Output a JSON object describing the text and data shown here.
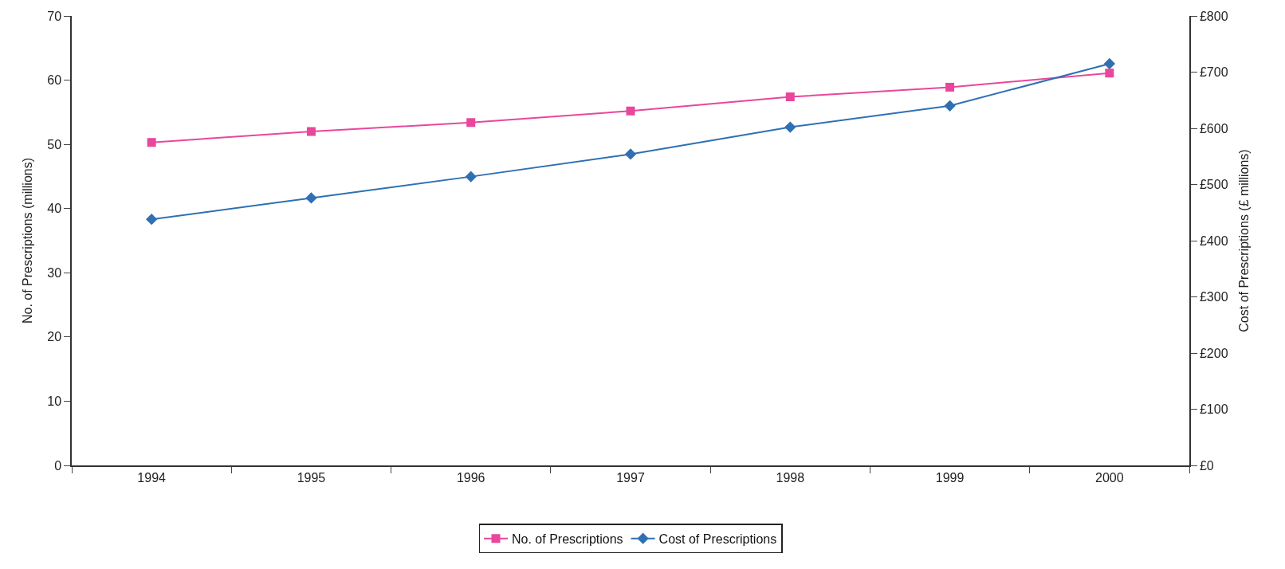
{
  "chart_data": {
    "type": "line",
    "categories": [
      "1994",
      "1995",
      "1996",
      "1997",
      "1998",
      "1999",
      "2000"
    ],
    "series": [
      {
        "name": "No. of Prescriptions",
        "color": "#e8479b",
        "marker": "square",
        "values": [
          50.3,
          52.0,
          53.4,
          55.2,
          57.4,
          58.9,
          61.1
        ]
      },
      {
        "name": "Cost of Prescriptions",
        "color": "#2f70b3",
        "marker": "diamond",
        "axis": "y2",
        "values": [
          438,
          476,
          514,
          554,
          602,
          640,
          715
        ]
      }
    ],
    "ylabel": "No. of Prescriptions (millions)",
    "y2label": "Cost of Prescriptions (£ millions)",
    "ylim": [
      0,
      70
    ],
    "yticks": [
      0,
      10,
      20,
      30,
      40,
      50,
      60,
      70
    ],
    "y2lim": [
      0,
      800
    ],
    "y2ticks": [
      {
        "value": 0,
        "label": "£0"
      },
      {
        "value": 100,
        "label": "£100"
      },
      {
        "value": 200,
        "label": "£200"
      },
      {
        "value": 300,
        "label": "£300"
      },
      {
        "value": 400,
        "label": "£400"
      },
      {
        "value": 500,
        "label": "£500"
      },
      {
        "value": 600,
        "label": "£600"
      },
      {
        "value": 700,
        "label": "£700"
      },
      {
        "value": 800,
        "label": "£800"
      }
    ],
    "legend": "bottom",
    "line_style": "solid"
  }
}
